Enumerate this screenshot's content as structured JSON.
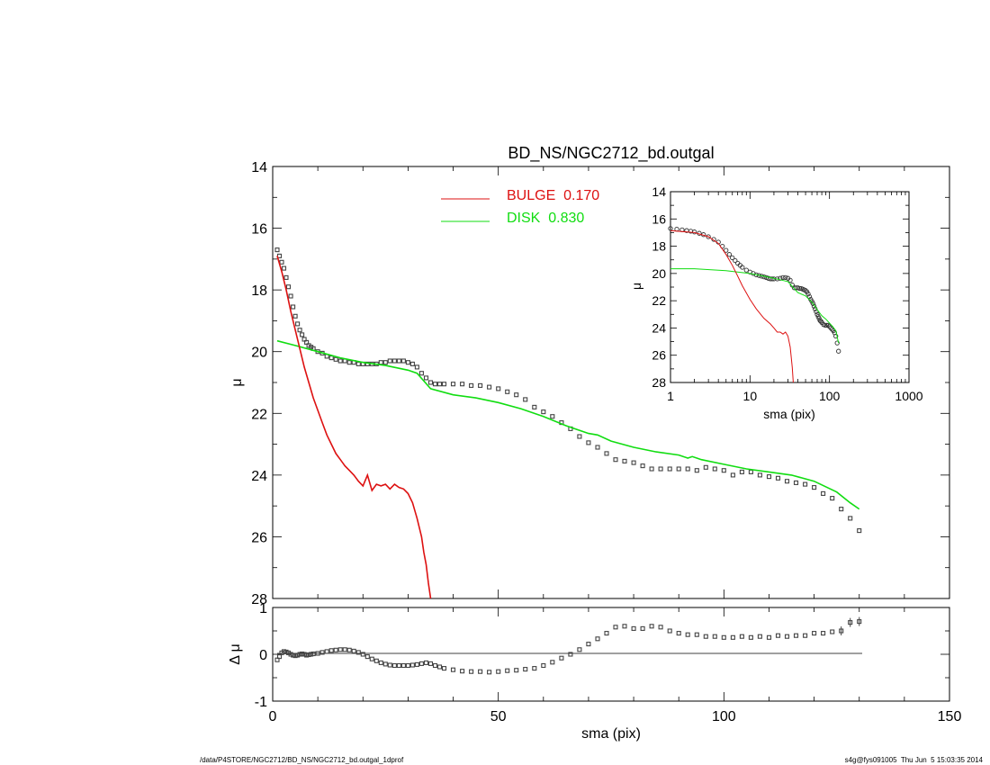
{
  "chart_data": [
    {
      "type": "line",
      "panel": "main",
      "title": "BD_NS/NGC2712_bd.outgal",
      "xlabel": "",
      "ylabel": "μ",
      "xlim": [
        0,
        150
      ],
      "ylim": [
        28,
        14
      ],
      "y_inverted": true,
      "x_ticks": [
        "0",
        "50",
        "100",
        "150"
      ],
      "y_ticks": [
        "14",
        "16",
        "18",
        "20",
        "22",
        "24",
        "26",
        "28"
      ],
      "legend_position": "top-center",
      "colors": {
        "bulge": "#dd1111",
        "disk": "#11dd11",
        "data": "#444444"
      },
      "series": [
        {
          "name": "BULGE  0.170",
          "kind": "line",
          "x": [
            1,
            2,
            3,
            4,
            5,
            6,
            7,
            8,
            9,
            10,
            11,
            12,
            13,
            14,
            15,
            16,
            17,
            18,
            19,
            20,
            21,
            22,
            23,
            24,
            25,
            26,
            27,
            28,
            29,
            30,
            31,
            32,
            33,
            33.5,
            34,
            34.5,
            35
          ],
          "values": [
            16.9,
            17.4,
            18.0,
            18.7,
            19.3,
            19.9,
            20.5,
            21.0,
            21.5,
            21.9,
            22.3,
            22.7,
            23.0,
            23.3,
            23.5,
            23.7,
            23.85,
            24.0,
            24.2,
            24.35,
            24.0,
            24.5,
            24.3,
            24.35,
            24.3,
            24.45,
            24.3,
            24.4,
            24.45,
            24.6,
            24.9,
            25.4,
            26.0,
            26.5,
            26.9,
            27.5,
            28.0
          ]
        },
        {
          "name": "DISK  0.830",
          "kind": "line",
          "x": [
            1,
            5,
            10,
            15,
            20,
            25,
            30,
            32,
            35,
            40,
            45,
            50,
            55,
            60,
            65,
            70,
            72,
            75,
            80,
            85,
            90,
            92,
            93,
            95,
            100,
            105,
            110,
            115,
            120,
            125,
            128,
            130
          ],
          "values": [
            19.65,
            19.8,
            20.0,
            20.2,
            20.35,
            20.45,
            20.6,
            20.7,
            21.2,
            21.4,
            21.5,
            21.65,
            21.85,
            22.1,
            22.4,
            22.65,
            22.7,
            22.9,
            23.1,
            23.25,
            23.35,
            23.45,
            23.4,
            23.5,
            23.65,
            23.8,
            23.9,
            24.0,
            24.2,
            24.55,
            24.9,
            25.1
          ]
        },
        {
          "name": "",
          "kind": "scatter",
          "marker": "square",
          "x": [
            1,
            1.5,
            2,
            2.5,
            3,
            3.5,
            4,
            4.5,
            5,
            5.5,
            6,
            6.5,
            7,
            7.5,
            8,
            8.5,
            9,
            10,
            11,
            12,
            13,
            14,
            15,
            16,
            17,
            18,
            19,
            20,
            21,
            22,
            23,
            24,
            25,
            26,
            27,
            28,
            29,
            30,
            31,
            32,
            33,
            34,
            35,
            36,
            37,
            38,
            40,
            42,
            44,
            46,
            48,
            50,
            52,
            54,
            56,
            58,
            60,
            62,
            64,
            66,
            68,
            70,
            72,
            74,
            76,
            78,
            80,
            82,
            84,
            86,
            88,
            90,
            92,
            94,
            96,
            98,
            100,
            102,
            104,
            106,
            108,
            110,
            112,
            114,
            116,
            118,
            120,
            122,
            124,
            126,
            128,
            130
          ],
          "values": [
            16.7,
            16.9,
            17.1,
            17.3,
            17.6,
            17.9,
            18.2,
            18.55,
            18.85,
            19.1,
            19.3,
            19.45,
            19.6,
            19.7,
            19.8,
            19.85,
            19.9,
            20.0,
            20.05,
            20.15,
            20.2,
            20.25,
            20.3,
            20.3,
            20.35,
            20.35,
            20.4,
            20.4,
            20.4,
            20.4,
            20.4,
            20.35,
            20.35,
            20.3,
            20.3,
            20.3,
            20.3,
            20.35,
            20.4,
            20.5,
            20.7,
            20.85,
            21.0,
            21.05,
            21.05,
            21.05,
            21.05,
            21.05,
            21.1,
            21.1,
            21.15,
            21.2,
            21.3,
            21.4,
            21.55,
            21.8,
            21.95,
            22.1,
            22.3,
            22.5,
            22.75,
            22.95,
            23.1,
            23.3,
            23.5,
            23.55,
            23.6,
            23.7,
            23.8,
            23.8,
            23.8,
            23.8,
            23.8,
            23.85,
            23.75,
            23.8,
            23.85,
            24.0,
            23.9,
            23.9,
            24.0,
            24.05,
            24.1,
            24.2,
            24.25,
            24.3,
            24.4,
            24.6,
            24.75,
            25.1,
            25.4,
            25.8
          ]
        }
      ]
    },
    {
      "type": "scatter",
      "panel": "residual",
      "xlabel": "sma (pix)",
      "ylabel": "Δ μ",
      "xlim": [
        0,
        150
      ],
      "ylim": [
        -1,
        1
      ],
      "x_ticks": [
        "0",
        "50",
        "100",
        "150"
      ],
      "y_ticks": [
        "1",
        "0",
        "-1"
      ],
      "series": [
        {
          "name": "",
          "kind": "scatter",
          "marker": "square",
          "x": [
            1,
            1.5,
            2,
            2.5,
            3,
            3.5,
            4,
            4.5,
            5,
            5.5,
            6,
            6.5,
            7,
            7.5,
            8,
            8.5,
            9,
            10,
            11,
            12,
            13,
            14,
            15,
            16,
            17,
            18,
            19,
            20,
            21,
            22,
            23,
            24,
            25,
            26,
            27,
            28,
            29,
            30,
            31,
            32,
            33,
            34,
            35,
            36,
            37,
            38,
            40,
            42,
            44,
            46,
            48,
            50,
            52,
            54,
            56,
            58,
            60,
            62,
            64,
            66,
            68,
            70,
            72,
            74,
            76,
            78,
            80,
            82,
            84,
            86,
            88,
            90,
            92,
            94,
            96,
            98,
            100,
            102,
            104,
            106,
            108,
            110,
            112,
            114,
            116,
            118,
            120,
            122,
            124,
            126,
            128,
            130
          ],
          "values": [
            -0.12,
            -0.05,
            0.03,
            0.06,
            0.05,
            0.03,
            0.0,
            -0.02,
            -0.03,
            -0.02,
            0.0,
            0.01,
            0.0,
            -0.02,
            -0.01,
            0.0,
            0.01,
            0.02,
            0.04,
            0.06,
            0.08,
            0.09,
            0.1,
            0.1,
            0.09,
            0.07,
            0.04,
            0.0,
            -0.05,
            -0.1,
            -0.14,
            -0.18,
            -0.21,
            -0.23,
            -0.24,
            -0.24,
            -0.24,
            -0.24,
            -0.23,
            -0.22,
            -0.2,
            -0.18,
            -0.2,
            -0.24,
            -0.27,
            -0.3,
            -0.33,
            -0.36,
            -0.37,
            -0.37,
            -0.38,
            -0.37,
            -0.35,
            -0.34,
            -0.32,
            -0.3,
            -0.24,
            -0.17,
            -0.08,
            0.0,
            0.1,
            0.22,
            0.33,
            0.45,
            0.58,
            0.6,
            0.55,
            0.55,
            0.6,
            0.58,
            0.5,
            0.45,
            0.42,
            0.42,
            0.38,
            0.38,
            0.36,
            0.36,
            0.38,
            0.36,
            0.38,
            0.36,
            0.4,
            0.38,
            0.4,
            0.4,
            0.45,
            0.45,
            0.48,
            0.5,
            0.68,
            0.7
          ]
        }
      ]
    },
    {
      "type": "line",
      "panel": "inset",
      "xlabel": "sma (pix)",
      "ylabel": "μ",
      "x_scale": "log",
      "xlim": [
        1,
        1000
      ],
      "ylim": [
        28,
        14
      ],
      "y_inverted": true,
      "x_ticks": [
        "1",
        "10",
        "100",
        "1000"
      ],
      "y_ticks": [
        "14",
        "16",
        "18",
        "20",
        "22",
        "24",
        "26",
        "28"
      ],
      "series": [
        {
          "name": "BULGE",
          "kind": "line",
          "x": [
            1,
            2,
            3,
            4,
            5,
            6,
            7,
            8,
            10,
            12,
            15,
            18,
            20,
            22,
            24,
            26,
            28,
            30,
            32,
            34,
            35
          ],
          "values": [
            16.85,
            17.0,
            17.3,
            17.8,
            18.6,
            19.4,
            20.2,
            20.9,
            21.9,
            22.6,
            23.3,
            23.7,
            24.0,
            24.3,
            24.3,
            24.45,
            24.3,
            24.6,
            25.4,
            26.9,
            28.0
          ]
        },
        {
          "name": "DISK",
          "kind": "line",
          "x": [
            1,
            2,
            5,
            10,
            15,
            20,
            30,
            40,
            50,
            60,
            70,
            80,
            90,
            100,
            110,
            120,
            130
          ],
          "values": [
            19.65,
            19.65,
            19.8,
            20.0,
            20.2,
            20.35,
            20.6,
            21.4,
            21.65,
            22.1,
            22.65,
            23.1,
            23.35,
            23.65,
            23.9,
            24.2,
            25.1
          ]
        },
        {
          "name": "",
          "kind": "scatter",
          "marker": "circle",
          "x": [
            1,
            1.2,
            1.4,
            1.6,
            1.8,
            2,
            2.3,
            2.6,
            3,
            3.5,
            4,
            4.5,
            5,
            5.5,
            6,
            6.5,
            7,
            7.5,
            8,
            9,
            10,
            11,
            12,
            13,
            14,
            15,
            16,
            17,
            18,
            19,
            20,
            22,
            24,
            26,
            28,
            30,
            32,
            34,
            36,
            38,
            40,
            42,
            44,
            46,
            48,
            50,
            52,
            54,
            56,
            58,
            60,
            62,
            64,
            66,
            68,
            70,
            72,
            74,
            76,
            78,
            80,
            84,
            88,
            92,
            96,
            100,
            104,
            108,
            112,
            116,
            120,
            125,
            130
          ],
          "values": [
            16.7,
            16.75,
            16.8,
            16.85,
            16.9,
            16.95,
            17.05,
            17.15,
            17.3,
            17.5,
            17.7,
            18.0,
            18.3,
            18.6,
            18.85,
            19.05,
            19.25,
            19.4,
            19.55,
            19.75,
            19.9,
            20.0,
            20.1,
            20.15,
            20.2,
            20.25,
            20.3,
            20.35,
            20.4,
            20.4,
            20.4,
            20.4,
            20.35,
            20.3,
            20.3,
            20.35,
            20.5,
            20.85,
            21.05,
            21.05,
            21.05,
            21.1,
            21.1,
            21.15,
            21.2,
            21.25,
            21.35,
            21.5,
            21.7,
            21.9,
            22.05,
            22.2,
            22.4,
            22.6,
            22.8,
            23.0,
            23.15,
            23.3,
            23.45,
            23.5,
            23.6,
            23.75,
            23.8,
            23.8,
            23.8,
            23.9,
            24.0,
            24.1,
            24.2,
            24.35,
            24.6,
            25.1,
            25.7
          ]
        }
      ]
    }
  ],
  "footer": {
    "left": "/data/P4STORE/NGC2712/BD_NS/NGC2712_bd.outgal_1dprof",
    "right": "s4g@fys091005  Thu Jun  5 15:03:35 2014"
  }
}
